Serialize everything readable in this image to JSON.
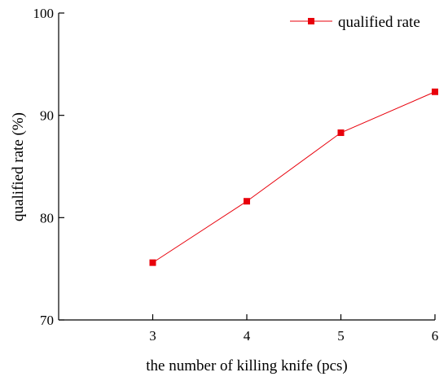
{
  "chart_data": {
    "type": "line",
    "title": "",
    "xlabel": "the number of killing knife (pcs)",
    "ylabel": "qualified rate (%)",
    "x": [
      3,
      4,
      5,
      6
    ],
    "xlim": [
      2,
      6
    ],
    "ylim": [
      70,
      100
    ],
    "x_ticks": [
      "3",
      "4",
      "5",
      "6"
    ],
    "y_ticks": [
      "70",
      "80",
      "90",
      "100"
    ],
    "series": [
      {
        "name": "qualified rate",
        "values": [
          75.6,
          81.6,
          88.3,
          92.3
        ],
        "color": "#e8000b",
        "marker": "square"
      }
    ],
    "legend": {
      "position": "top-right",
      "entries": [
        "qualified rate"
      ]
    },
    "grid": false
  }
}
